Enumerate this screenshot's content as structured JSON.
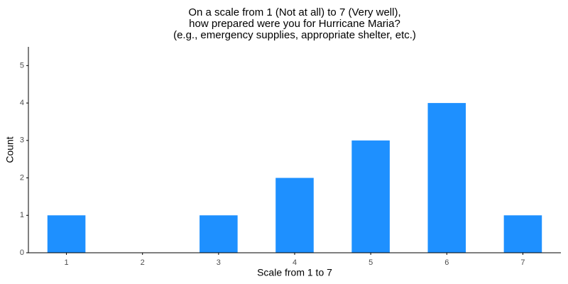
{
  "chart_data": {
    "type": "bar",
    "title": [
      "On a scale from 1 (Not at all) to 7 (Very well),",
      "how prepared were you for Hurricane Maria?",
      "(e.g., emergency supplies, appropriate shelter, etc.)"
    ],
    "x_label": "Scale from 1 to 7",
    "y_label": "Count",
    "categories": [
      "1",
      "2",
      "3",
      "4",
      "5",
      "6",
      "7"
    ],
    "values": [
      1,
      0,
      1,
      2,
      3,
      4,
      1
    ],
    "color": "#1e90ff",
    "ylim": [
      0,
      5.5
    ],
    "yticks": [
      0,
      1,
      2,
      3,
      4,
      5
    ],
    "grid": false
  }
}
